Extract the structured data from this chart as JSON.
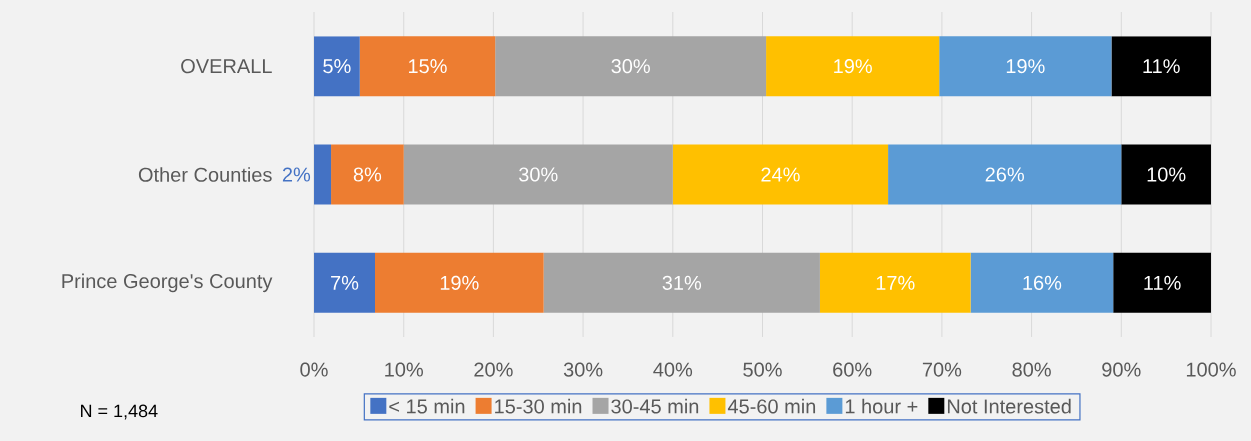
{
  "chart_data": {
    "type": "bar",
    "orientation": "horizontal",
    "stacked": true,
    "categories": [
      "OVERALL",
      "Other Counties",
      "Prince George's County"
    ],
    "series": [
      {
        "name": "< 15 min",
        "color": "#4472c4",
        "values": [
          5.1,
          1.9,
          6.8
        ],
        "value_labels": [
          "5%",
          "2%",
          "7%"
        ]
      },
      {
        "name": "15-30 min",
        "color": "#ed7d31",
        "values": [
          15.1,
          8.1,
          18.8
        ],
        "value_labels": [
          "15%",
          "8%",
          "19%"
        ]
      },
      {
        "name": "30-45 min",
        "color": "#a5a5a5",
        "values": [
          30.2,
          30,
          30.8
        ],
        "value_labels": [
          "30%",
          "30%",
          "31%"
        ]
      },
      {
        "name": "45-60 min",
        "color": "#ffc000",
        "values": [
          19.3,
          24,
          16.8
        ],
        "value_labels": [
          "19%",
          "24%",
          "17%"
        ]
      },
      {
        "name": "1 hour +",
        "color": "#5b9bd5",
        "values": [
          19.2,
          26,
          15.9
        ],
        "value_labels": [
          "19%",
          "26%",
          "16%"
        ]
      },
      {
        "name": "Not Interested",
        "color": "#000000",
        "values": [
          11.1,
          10,
          10.9
        ],
        "value_labels": [
          "11%",
          "10%",
          "11%"
        ]
      }
    ],
    "xlim": [
      0,
      100
    ],
    "xticks": [
      {
        "value": 0,
        "label": "0%"
      },
      {
        "value": 10,
        "label": "10%"
      },
      {
        "value": 20,
        "label": "20%"
      },
      {
        "value": 30,
        "label": "30%"
      },
      {
        "value": 40,
        "label": "40%"
      },
      {
        "value": 50,
        "label": "50%"
      },
      {
        "value": 60,
        "label": "60%"
      },
      {
        "value": 70,
        "label": "70%"
      },
      {
        "value": 80,
        "label": "80%"
      },
      {
        "value": 90,
        "label": "90%"
      },
      {
        "value": 100,
        "label": "100%"
      }
    ],
    "grid": "x",
    "legend": "bottom",
    "annotations": [
      "N = 1,484"
    ]
  }
}
